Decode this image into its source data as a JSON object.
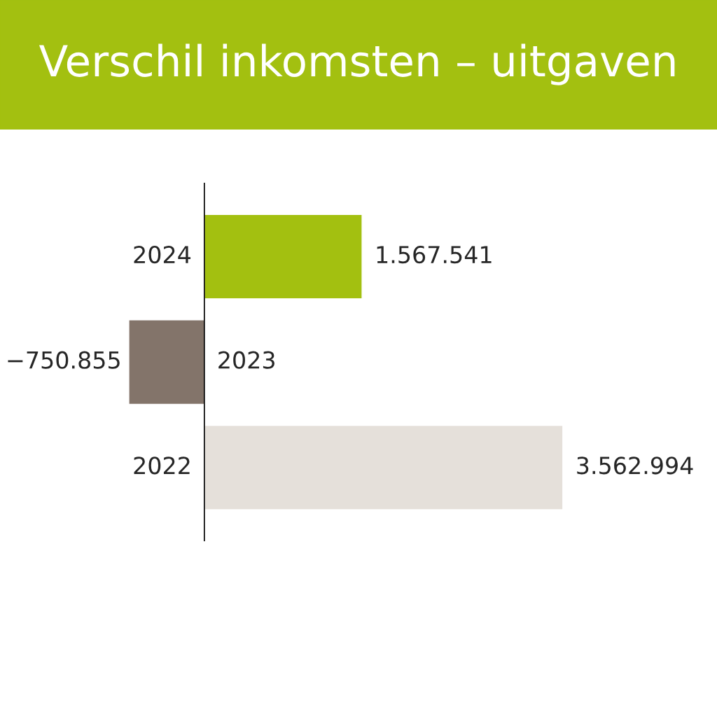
{
  "chart_data": {
    "type": "bar",
    "orientation": "horizontal",
    "title": "Verschil inkomsten – uitgaven",
    "categories": [
      "2024",
      "2023",
      "2022"
    ],
    "values": [
      1567541,
      -750855,
      3562994
    ],
    "colors": [
      "#a3c010",
      "#83746a",
      "#e5e0da"
    ],
    "value_labels": [
      "1.567.541",
      "−750.855",
      "3.562.994"
    ]
  }
}
